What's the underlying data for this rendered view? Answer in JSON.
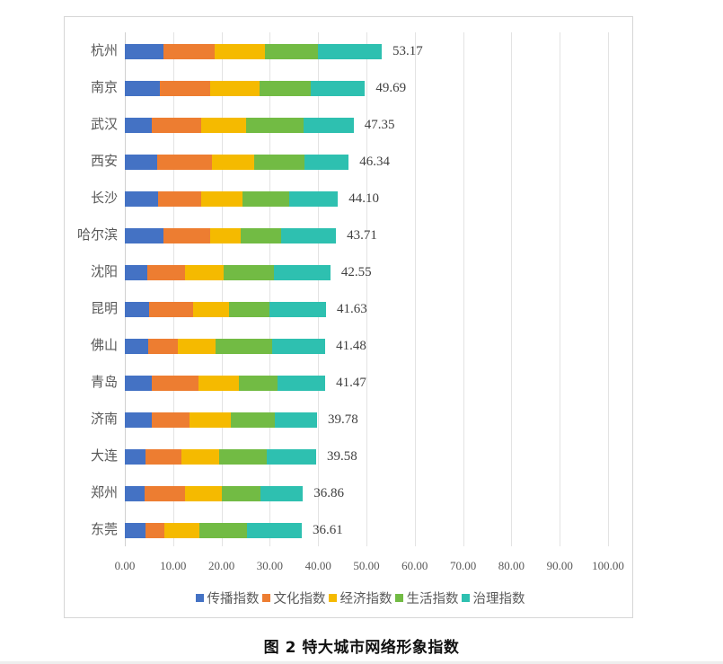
{
  "chart_data": {
    "type": "bar",
    "orientation": "horizontal",
    "stacked": true,
    "title": "图 2 特大城市网络形象指数",
    "xlabel": "",
    "ylabel": "",
    "xlim": [
      0,
      100
    ],
    "x_ticks": [
      "0.00",
      "10.00",
      "20.00",
      "30.00",
      "40.00",
      "50.00",
      "60.00",
      "70.00",
      "80.00",
      "90.00",
      "100.00"
    ],
    "grid": true,
    "legend_position": "bottom",
    "categories": [
      "杭州",
      "南京",
      "武汉",
      "西安",
      "长沙",
      "哈尔滨",
      "沈阳",
      "昆明",
      "佛山",
      "青岛",
      "济南",
      "大连",
      "郑州",
      "东莞"
    ],
    "series": [
      {
        "name": "传播指数",
        "color": "#4472C4",
        "values": [
          7.9,
          7.3,
          5.6,
          6.6,
          6.9,
          7.9,
          4.7,
          5.0,
          4.8,
          5.6,
          5.6,
          4.3,
          4.0,
          4.2
        ]
      },
      {
        "name": "文化指数",
        "color": "#ED7D31",
        "values": [
          10.7,
          10.3,
          10.2,
          11.4,
          8.9,
          9.8,
          7.8,
          9.1,
          6.2,
          9.6,
          7.8,
          7.5,
          8.5,
          3.9
        ]
      },
      {
        "name": "经济指数",
        "color": "#F5BA00",
        "values": [
          10.4,
          10.3,
          9.3,
          8.8,
          8.5,
          6.2,
          7.9,
          7.5,
          7.8,
          8.5,
          8.5,
          7.7,
          7.5,
          7.3
        ]
      },
      {
        "name": "生活指数",
        "color": "#72BB44",
        "values": [
          11.0,
          10.6,
          11.8,
          10.4,
          9.7,
          8.4,
          10.5,
          8.4,
          11.7,
          7.9,
          9.1,
          9.8,
          8.1,
          9.9
        ]
      },
      {
        "name": "治理指数",
        "color": "#2EC0B0",
        "values": [
          13.17,
          11.19,
          10.45,
          9.14,
          10.1,
          11.41,
          11.65,
          11.63,
          10.98,
          9.87,
          8.78,
          10.28,
          8.76,
          11.31
        ]
      }
    ],
    "totals": [
      "53.17",
      "49.69",
      "47.35",
      "46.34",
      "44.10",
      "43.71",
      "42.55",
      "41.63",
      "41.48",
      "41.47",
      "39.78",
      "39.58",
      "36.86",
      "36.61"
    ]
  },
  "caption": "图 2 特大城市网络形象指数"
}
